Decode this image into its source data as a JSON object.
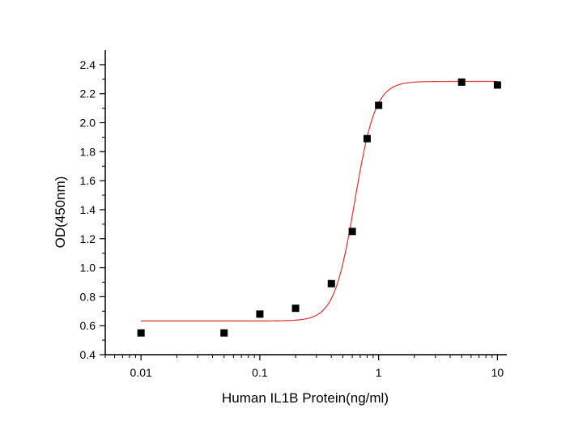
{
  "chart_data": {
    "type": "scatter",
    "title": "",
    "xlabel": "Human IL1B Protein(ng/ml)",
    "ylabel": "OD(450nm)",
    "x_scale": "log",
    "xlim": [
      0.005,
      12
    ],
    "ylim": [
      0.4,
      2.5
    ],
    "x_ticks": [
      0.01,
      0.1,
      1,
      10
    ],
    "x_tick_labels": [
      "0.01",
      "0.1",
      "1",
      "10"
    ],
    "y_ticks": [
      0.4,
      0.6,
      0.8,
      1.0,
      1.2,
      1.4,
      1.6,
      1.8,
      2.0,
      2.2,
      2.4
    ],
    "y_tick_labels": [
      "0.4",
      "0.6",
      "0.8",
      "1.0",
      "1.2",
      "1.4",
      "1.6",
      "1.8",
      "2.0",
      "2.2",
      "2.4"
    ],
    "grid": false,
    "legend": "none",
    "points": {
      "x": [
        0.01,
        0.05,
        0.1,
        0.2,
        0.4,
        0.6,
        0.8,
        1,
        5,
        10
      ],
      "y": [
        0.55,
        0.55,
        0.68,
        0.72,
        0.89,
        1.25,
        1.89,
        2.12,
        2.28,
        2.26
      ],
      "color": "#000000",
      "marker": "square"
    },
    "fit_curve": {
      "model": "4PL",
      "bottom": 0.633,
      "top": 2.285,
      "ec50": 0.63,
      "hill": 5,
      "x_range": [
        0.01,
        10
      ],
      "color": "#e03030"
    }
  }
}
